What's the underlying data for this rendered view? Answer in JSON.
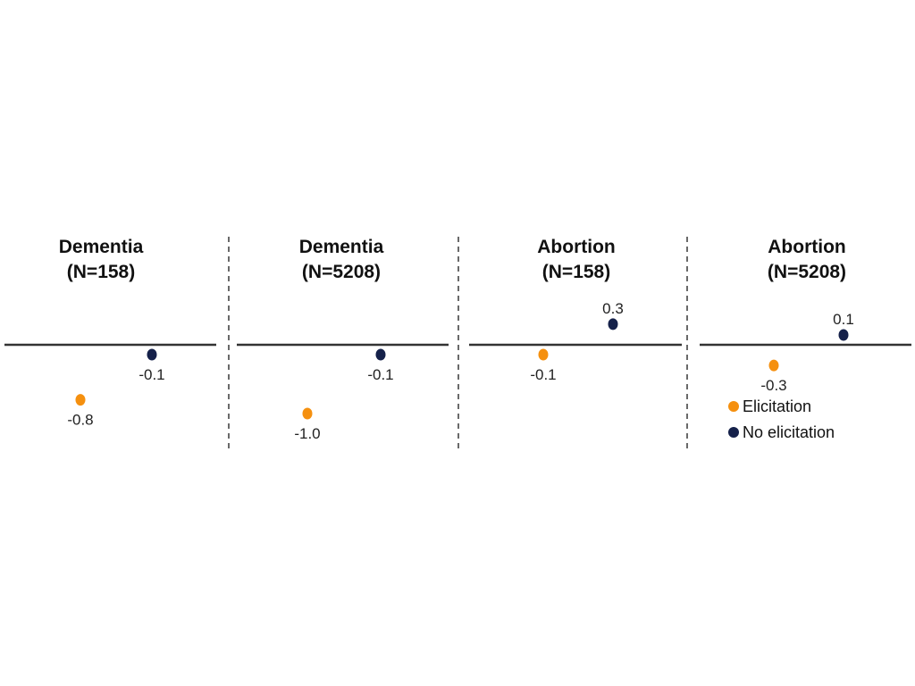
{
  "chart_data": {
    "type": "scatter",
    "y_zero_baseline": true,
    "grid": false,
    "legend_position": "bottom-right",
    "colors": {
      "Elicitation": "#f5900f",
      "No elicitation": "#15214a",
      "axis": "#333333",
      "divider": "#444444"
    },
    "legend": [
      "Elicitation",
      "No elicitation"
    ],
    "panels": [
      {
        "title_line1": "Dementia",
        "title_line2": "(N=158)",
        "series": [
          {
            "name": "Elicitation",
            "value": -0.8,
            "label": "-0.8"
          },
          {
            "name": "No elicitation",
            "value": -0.1,
            "label": "-0.1"
          }
        ]
      },
      {
        "title_line1": "Dementia",
        "title_line2": "(N=5208)",
        "series": [
          {
            "name": "Elicitation",
            "value": -1.0,
            "label": "-1.0"
          },
          {
            "name": "No elicitation",
            "value": -0.1,
            "label": "-0.1"
          }
        ]
      },
      {
        "title_line1": "Abortion",
        "title_line2": "(N=158)",
        "series": [
          {
            "name": "Elicitation",
            "value": -0.1,
            "label": "-0.1"
          },
          {
            "name": "No elicitation",
            "value": 0.3,
            "label": "0.3"
          }
        ]
      },
      {
        "title_line1": "Abortion",
        "title_line2": "(N=5208)",
        "series": [
          {
            "name": "Elicitation",
            "value": -0.3,
            "label": "-0.3"
          },
          {
            "name": "No elicitation",
            "value": 0.1,
            "label": "0.1"
          }
        ]
      }
    ]
  }
}
